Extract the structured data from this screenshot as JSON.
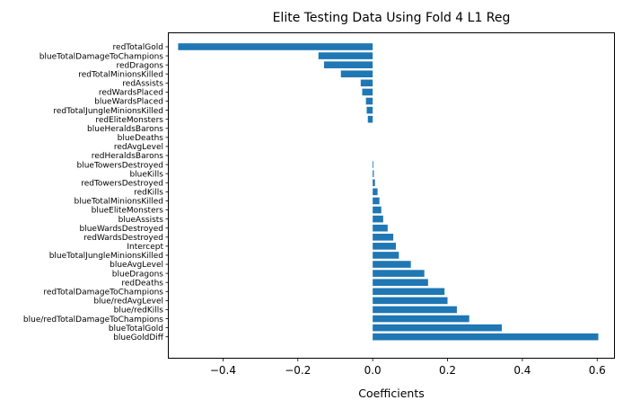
{
  "chart_data": {
    "type": "bar",
    "orientation": "horizontal",
    "title": "Elite Testing Data Using Fold 4 L1 Reg",
    "xlabel": "Coefficients",
    "ylabel": "",
    "xlim": [
      -0.545,
      0.645
    ],
    "xticks": [
      -0.4,
      -0.2,
      0.0,
      0.2,
      0.4,
      0.6
    ],
    "xtick_labels": [
      "−0.4",
      "−0.2",
      "0.0",
      "0.2",
      "0.4",
      "0.6"
    ],
    "bar_color": "#1f77b4",
    "grid": false,
    "categories": [
      "redTotalGold",
      "blueTotalDamageToChampions",
      "redDragons",
      "redTotalMinionsKilled",
      "redAssists",
      "redWardsPlaced",
      "blueWardsPlaced",
      "redTotalJungleMinionsKilled",
      "redEliteMonsters",
      "blueHeraldsBarons",
      "blueDeaths",
      "redAvgLevel",
      "redHeraldsBarons",
      "blueTowersDestroyed",
      "blueKills",
      "redTowersDestroyed",
      "redKills",
      "blueTotalMinionsKilled",
      "blueEliteMonsters",
      "blueAssists",
      "blueWardsDestroyed",
      "redWardsDestroyed",
      "Intercept",
      "blueTotalJungleMinionsKilled",
      "blueAvgLevel",
      "blueDragons",
      "redDeaths",
      "redTotalDamageToChampions",
      "blue/redAvgLevel",
      "blue/redKills",
      "blue/redTotalDamageToChampions",
      "blueTotalGold",
      "blueGoldDiff"
    ],
    "values": [
      -0.52,
      -0.145,
      -0.13,
      -0.085,
      -0.032,
      -0.028,
      -0.018,
      -0.016,
      -0.013,
      0.0,
      0.0,
      0.0,
      0.0,
      0.002,
      0.003,
      0.006,
      0.013,
      0.018,
      0.023,
      0.028,
      0.04,
      0.055,
      0.062,
      0.07,
      0.102,
      0.138,
      0.148,
      0.192,
      0.2,
      0.225,
      0.258,
      0.345,
      0.603
    ]
  }
}
